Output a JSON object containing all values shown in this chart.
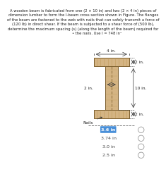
{
  "title_text": "A wooden beam is fabricated from one (2 × 10 in) and two (2 × 4 in) pieces of\ndimension lumber to form the I-beam cross section shown in Figure. The flanges\nof the beam are fastened to the web with nails that can safely transmit a force of\n(120 lb) in direct shear. If the beam is subjected to a shear force of (500 lb),\ndetermine the maximum spacing (s) (along the length of the beam) required for\n                        • the nails. Use I = 748 in⁴",
  "answer_options": [
    "3.6 in",
    "3.74 in",
    "3.0 in",
    "2.5 in"
  ],
  "correct_index": 0,
  "correct_color": "#4a90d9",
  "option_circle_color": "#999999",
  "background_color": "#ffffff",
  "beam_flange_color": "#d4b483",
  "beam_outline_color": "#7a5c2a",
  "beam_wood_grain_color": "#b8924a",
  "nails_label": "Nails",
  "dim_4in": "4 in.",
  "dim_2in_top": "2 in.",
  "dim_2in_web": "2 in.",
  "dim_10in": "10 in.",
  "dim_2in_bot": "2 in."
}
